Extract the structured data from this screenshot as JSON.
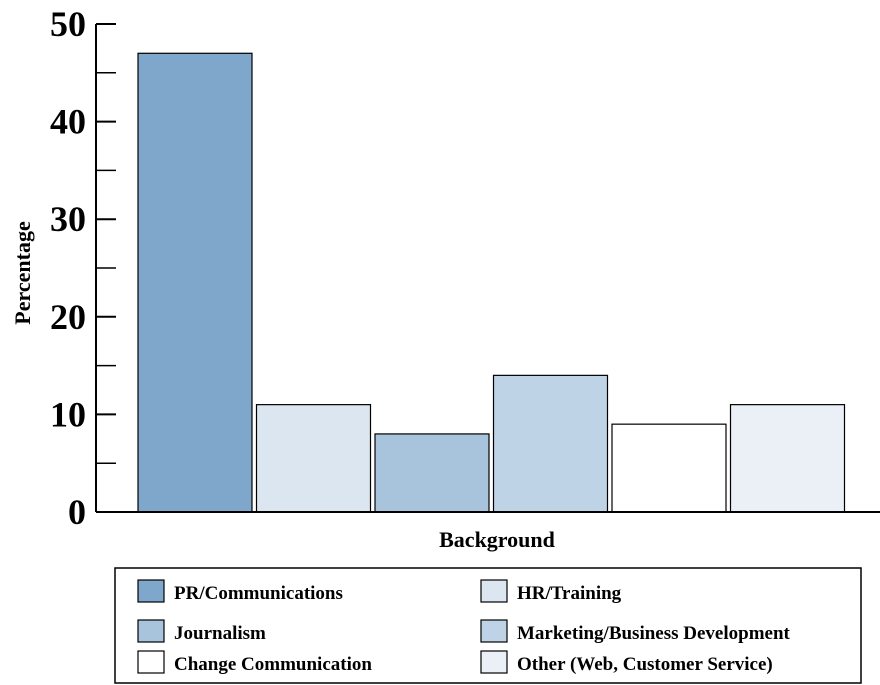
{
  "chart_data": {
    "type": "bar",
    "title": "",
    "xlabel": "Background",
    "ylabel": "Percentage",
    "ylim": [
      0,
      50
    ],
    "yticks": [
      0,
      10,
      20,
      30,
      40,
      50
    ],
    "minor_yticks": [
      5,
      15,
      25,
      35,
      45
    ],
    "grid": false,
    "legend_position": "bottom",
    "series": [
      {
        "name": "PR/Communications",
        "value": 47,
        "color": "#7ea7cb"
      },
      {
        "name": "HR/Training",
        "value": 11,
        "color": "#dbe6f1"
      },
      {
        "name": "Journalism",
        "value": 8,
        "color": "#a8c4dd"
      },
      {
        "name": "Marketing/Business Development",
        "value": 14,
        "color": "#bfd3e6"
      },
      {
        "name": "Change Communication",
        "value": 9,
        "color": "#ffffff"
      },
      {
        "name": "Other (Web, Customer Service)",
        "value": 11,
        "color": "#ebeff6"
      }
    ]
  }
}
